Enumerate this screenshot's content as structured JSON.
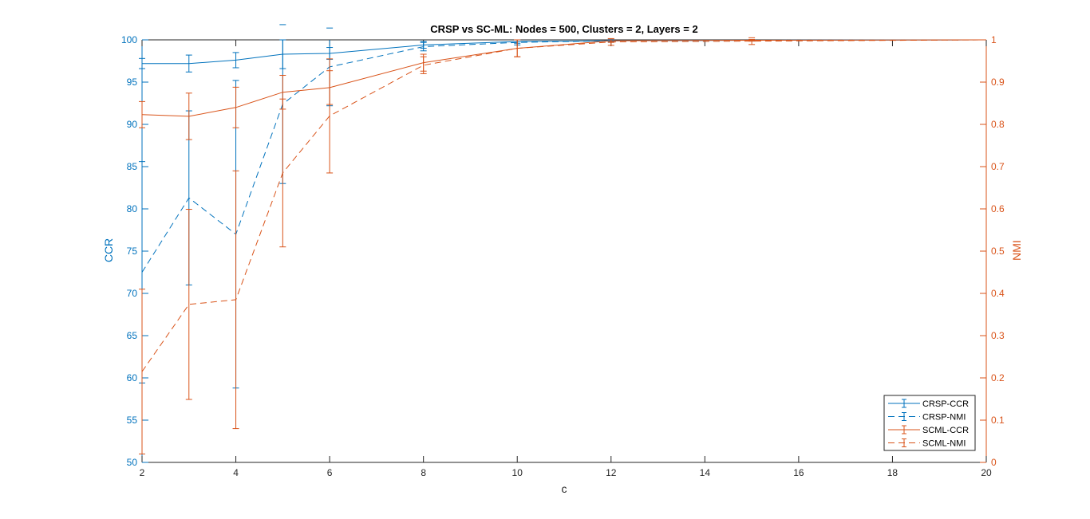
{
  "chart_data": {
    "type": "line",
    "title": "CRSP vs SC-ML: Nodes = 500, Clusters = 2, Layers = 2",
    "xlabel": "c",
    "ylabel_left": "CCR",
    "ylabel_right": "NMI",
    "xlim": [
      2,
      20
    ],
    "ylim_left": [
      50,
      100
    ],
    "ylim_right": [
      0,
      1
    ],
    "xticks": [
      2,
      4,
      6,
      8,
      10,
      12,
      14,
      16,
      18,
      20
    ],
    "yticks_left": [
      50,
      55,
      60,
      65,
      70,
      75,
      80,
      85,
      90,
      95,
      100
    ],
    "yticks_right": [
      0,
      0.1,
      0.2,
      0.3,
      0.4,
      0.5,
      0.6,
      0.7,
      0.8,
      0.9,
      1
    ],
    "grid": false,
    "legend_position": "bottom-right",
    "colors": {
      "crsp": "#0072BD",
      "scml": "#D95319",
      "axis_left": "#0072BD",
      "axis_right": "#D95319"
    },
    "series": [
      {
        "name": "CRSP-CCR",
        "color": "#0072BD",
        "dash": "solid",
        "axis": "left",
        "x": [
          2,
          3,
          4,
          5,
          6,
          8,
          10,
          12,
          15,
          20
        ],
        "y": [
          97.2,
          97.2,
          97.6,
          98.3,
          98.4,
          99.4,
          99.8,
          99.9,
          99.95,
          100
        ],
        "err": [
          0.6,
          1.0,
          0.9,
          1.7,
          0.7,
          0.4,
          0.2,
          0.1,
          0.05,
          0.0
        ]
      },
      {
        "name": "CRSP-NMI",
        "color": "#0072BD",
        "dash": "dashed",
        "axis": "left",
        "x": [
          2,
          3,
          4,
          5,
          6,
          8,
          10,
          12,
          15,
          20
        ],
        "y": [
          72.5,
          81.3,
          77.0,
          92.4,
          96.8,
          99.2,
          99.7,
          99.9,
          99.95,
          100
        ],
        "err": [
          13.1,
          10.3,
          18.2,
          9.4,
          4.6,
          0.5,
          0.3,
          0.1,
          0.05,
          0.0
        ]
      },
      {
        "name": "SCML-CCR",
        "color": "#D95319",
        "dash": "solid",
        "axis": "right",
        "x": [
          2,
          3,
          4,
          5,
          6,
          8,
          10,
          12,
          15,
          20
        ],
        "y": [
          0.823,
          0.819,
          0.84,
          0.876,
          0.887,
          0.946,
          0.98,
          0.998,
          0.999,
          1.0
        ],
        "err": [
          0.031,
          0.055,
          0.048,
          0.04,
          0.04,
          0.02,
          0.02,
          0.004,
          0.002,
          0.0
        ]
      },
      {
        "name": "SCML-NMI",
        "color": "#D95319",
        "dash": "dashed",
        "axis": "right",
        "x": [
          2,
          3,
          4,
          5,
          6,
          8,
          10,
          12,
          15,
          20
        ],
        "y": [
          0.215,
          0.374,
          0.385,
          0.685,
          0.82,
          0.94,
          0.98,
          0.995,
          0.997,
          1.0
        ],
        "err": [
          0.195,
          0.225,
          0.305,
          0.175,
          0.135,
          0.02,
          0.02,
          0.008,
          0.008,
          0.0
        ]
      }
    ]
  }
}
